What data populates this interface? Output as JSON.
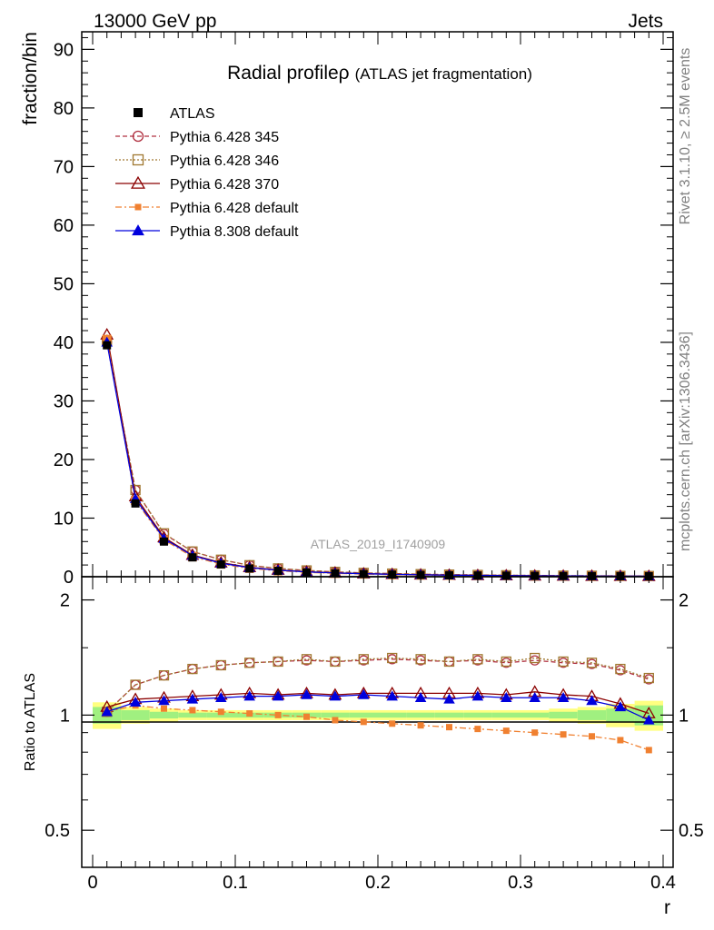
{
  "header": {
    "left": "13000 GeV pp",
    "right": "Jets"
  },
  "side_text": {
    "rivet": "Rivet 3.1.10, ≥ 2.5M events",
    "mcplots": "mcplots.cern.ch [arXiv:1306.3436]"
  },
  "watermark": "ATLAS_2019_I1740909",
  "chart_data": [
    {
      "type": "line",
      "panel": "main",
      "title": "Radial profile ρ",
      "title_main": "Radial profile",
      "title_symbol": "ρ",
      "title_sub": "(ATLAS jet fragmentation)",
      "ylabel": "fraction/bin",
      "xlabel": "r",
      "xlim": [
        0,
        0.4
      ],
      "ylim": [
        0,
        93
      ],
      "yticks": [
        0,
        10,
        20,
        30,
        40,
        50,
        60,
        70,
        80,
        90
      ],
      "x": [
        0.01,
        0.03,
        0.05,
        0.07,
        0.09,
        0.11,
        0.13,
        0.15,
        0.17,
        0.19,
        0.21,
        0.23,
        0.25,
        0.27,
        0.29,
        0.31,
        0.33,
        0.35,
        0.37,
        0.39
      ],
      "legend_position": "top-left",
      "series": [
        {
          "name": "ATLAS",
          "color": "#000000",
          "marker": "square-filled",
          "values": [
            39.5,
            12.5,
            6.0,
            3.3,
            2.1,
            1.4,
            1.0,
            0.75,
            0.58,
            0.46,
            0.37,
            0.3,
            0.25,
            0.21,
            0.18,
            0.15,
            0.13,
            0.11,
            0.1,
            0.09
          ]
        },
        {
          "name": "Pythia 6.428 345",
          "color": "#b03040",
          "marker": "circle-open",
          "dash": "5,3",
          "values": [
            40.0,
            14.8,
            7.3,
            4.3,
            2.9,
            1.95,
            1.4,
            1.06,
            0.82,
            0.65,
            0.53,
            0.43,
            0.36,
            0.3,
            0.25,
            0.21,
            0.18,
            0.16,
            0.14,
            0.12
          ]
        },
        {
          "name": "Pythia 6.428 346",
          "color": "#a07830",
          "marker": "square-open",
          "dash": "2,2",
          "values": [
            40.2,
            14.8,
            7.4,
            4.3,
            2.9,
            1.96,
            1.41,
            1.07,
            0.82,
            0.65,
            0.53,
            0.43,
            0.36,
            0.3,
            0.25,
            0.22,
            0.18,
            0.16,
            0.14,
            0.12
          ]
        },
        {
          "name": "Pythia 6.428 370",
          "color": "#8b0000",
          "marker": "triangle-open",
          "dash": "",
          "values": [
            41.3,
            13.7,
            6.7,
            3.7,
            2.4,
            1.6,
            1.15,
            0.85,
            0.66,
            0.52,
            0.42,
            0.34,
            0.28,
            0.24,
            0.2,
            0.17,
            0.15,
            0.12,
            0.11,
            0.09
          ]
        },
        {
          "name": "Pythia 6.428 default",
          "color": "#f08030",
          "marker": "square-filled",
          "dash": "7,3,2,3",
          "values": [
            40.5,
            13.0,
            6.3,
            3.4,
            2.15,
            1.42,
            1.0,
            0.75,
            0.57,
            0.45,
            0.35,
            0.28,
            0.23,
            0.19,
            0.16,
            0.14,
            0.12,
            0.1,
            0.08,
            0.07
          ]
        },
        {
          "name": "Pythia 8.308 default",
          "color": "#0000dd",
          "marker": "triangle-filled",
          "dash": "",
          "values": [
            40.0,
            13.3,
            6.5,
            3.6,
            2.3,
            1.55,
            1.1,
            0.82,
            0.64,
            0.51,
            0.41,
            0.33,
            0.27,
            0.23,
            0.19,
            0.16,
            0.14,
            0.12,
            0.1,
            0.085
          ]
        }
      ]
    },
    {
      "type": "line",
      "panel": "ratio",
      "ylabel": "Ratio to ATLAS",
      "xlabel": "r",
      "xlim": [
        0,
        0.4
      ],
      "ylim": [
        0.4,
        2.3
      ],
      "y_scale": "log",
      "yticks": [
        0.5,
        1,
        2
      ],
      "ytick_labels": [
        "0.5",
        "1",
        "2"
      ],
      "xticks": [
        0,
        0.1,
        0.2,
        0.3,
        0.4
      ],
      "xtick_labels": [
        "0",
        "0.1",
        "0.2",
        "0.3",
        "0.4"
      ],
      "x": [
        0.01,
        0.03,
        0.05,
        0.07,
        0.09,
        0.11,
        0.13,
        0.15,
        0.17,
        0.19,
        0.21,
        0.23,
        0.25,
        0.27,
        0.29,
        0.31,
        0.33,
        0.35,
        0.37,
        0.39
      ],
      "uncertainty_band": {
        "outer_color": "#ffff80",
        "inner_color": "#a0f080",
        "outer": [
          0.08,
          0.05,
          0.04,
          0.03,
          0.03,
          0.03,
          0.03,
          0.03,
          0.03,
          0.03,
          0.03,
          0.03,
          0.03,
          0.03,
          0.03,
          0.03,
          0.04,
          0.05,
          0.07,
          0.09
        ],
        "inner": [
          0.05,
          0.03,
          0.02,
          0.015,
          0.015,
          0.015,
          0.015,
          0.015,
          0.015,
          0.015,
          0.015,
          0.015,
          0.015,
          0.015,
          0.015,
          0.015,
          0.02,
          0.03,
          0.04,
          0.06
        ]
      },
      "series": [
        {
          "name": "Pythia 6.428 345",
          "color": "#b03040",
          "marker": "circle-open",
          "dash": "5,3",
          "values": [
            1.02,
            1.2,
            1.27,
            1.32,
            1.35,
            1.37,
            1.38,
            1.39,
            1.38,
            1.39,
            1.4,
            1.39,
            1.38,
            1.39,
            1.37,
            1.39,
            1.37,
            1.36,
            1.31,
            1.24
          ]
        },
        {
          "name": "Pythia 6.428 346",
          "color": "#a07830",
          "marker": "square-open",
          "dash": "2,2",
          "values": [
            1.02,
            1.2,
            1.27,
            1.32,
            1.35,
            1.37,
            1.38,
            1.4,
            1.38,
            1.4,
            1.41,
            1.4,
            1.38,
            1.4,
            1.38,
            1.41,
            1.38,
            1.37,
            1.32,
            1.25
          ]
        },
        {
          "name": "Pythia 6.428 370",
          "color": "#8b0000",
          "marker": "triangle-open",
          "dash": "",
          "values": [
            1.05,
            1.1,
            1.11,
            1.12,
            1.13,
            1.14,
            1.13,
            1.14,
            1.13,
            1.14,
            1.14,
            1.14,
            1.14,
            1.14,
            1.13,
            1.15,
            1.13,
            1.12,
            1.07,
            1.01
          ]
        },
        {
          "name": "Pythia 6.428 default",
          "color": "#f08030",
          "marker": "square-filled",
          "dash": "7,3,2,3",
          "values": [
            1.02,
            1.06,
            1.04,
            1.03,
            1.02,
            1.01,
            1.0,
            0.99,
            0.97,
            0.96,
            0.95,
            0.94,
            0.93,
            0.92,
            0.91,
            0.9,
            0.89,
            0.88,
            0.86,
            0.81
          ]
        },
        {
          "name": "Pythia 8.308 default",
          "color": "#0000dd",
          "marker": "triangle-filled",
          "dash": "",
          "values": [
            1.02,
            1.08,
            1.09,
            1.1,
            1.11,
            1.12,
            1.12,
            1.13,
            1.12,
            1.13,
            1.12,
            1.11,
            1.1,
            1.12,
            1.11,
            1.11,
            1.11,
            1.09,
            1.05,
            0.97
          ]
        }
      ]
    }
  ]
}
